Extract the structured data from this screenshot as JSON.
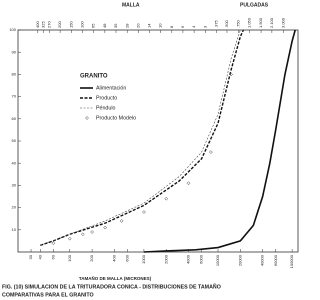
{
  "chart_data": {
    "type": "line",
    "title": "FIG. (10) SIMULACION DE LA TRITURADORA CONICA - DISTRIBUCIONES DE TAMAÑO",
    "subtitle": "COMPARATIVAS PARA EL GRANITO",
    "xlabel": "TAMAÑO DE MALLA (MICRONES)",
    "top_label": "MALLA",
    "top_label_2": "PULGADAS",
    "legend_title": "GRANITO",
    "xlog": true,
    "xlim": [
      20,
      120000
    ],
    "ylim": [
      0,
      100
    ],
    "xticks": [
      30,
      40,
      60,
      100,
      200,
      400,
      600,
      1000,
      2000,
      4000,
      6000,
      10000,
      20000,
      40000,
      60000,
      100000
    ],
    "yticks": [
      10,
      20,
      30,
      40,
      50,
      60,
      70,
      80,
      90,
      100
    ],
    "top_ticks": [
      {
        "value": 37,
        "label": "400"
      },
      {
        "value": 44,
        "label": "325"
      },
      {
        "value": 53,
        "label": "270"
      },
      {
        "value": 74,
        "label": "200"
      },
      {
        "value": 105,
        "label": "150"
      },
      {
        "value": 149,
        "label": "100"
      },
      {
        "value": 210,
        "label": "65"
      },
      {
        "value": 297,
        "label": "48"
      },
      {
        "value": 420,
        "label": "35"
      },
      {
        "value": 595,
        "label": "28"
      },
      {
        "value": 841,
        "label": "20"
      },
      {
        "value": 1190,
        "label": "14"
      },
      {
        "value": 1680,
        "label": "10"
      },
      {
        "value": 2380,
        "label": "8"
      },
      {
        "value": 3360,
        "label": "6"
      },
      {
        "value": 4760,
        "label": "4"
      },
      {
        "value": 6730,
        "label": "3"
      },
      {
        "value": 9500,
        "label": ".375"
      },
      {
        "value": 13200,
        "label": ".500"
      },
      {
        "value": 19000,
        "label": ".750"
      },
      {
        "value": 26700,
        "label": "1.050"
      },
      {
        "value": 38100,
        "label": "1.500"
      },
      {
        "value": 53300,
        "label": "2.100"
      },
      {
        "value": 76200,
        "label": "3.000"
      }
    ],
    "series": [
      {
        "name": "Alimentación",
        "color": "#111111",
        "style": "solid",
        "x": [
          1000,
          2000,
          5000,
          10000,
          20000,
          30000,
          40000,
          50000,
          60000,
          80000,
          100000,
          110000
        ],
        "values": [
          0,
          0.5,
          1,
          2,
          5,
          12,
          25,
          40,
          55,
          80,
          95,
          100
        ]
      },
      {
        "name": "Producto",
        "color": "#111111",
        "style": "dashed",
        "x": [
          40,
          60,
          100,
          300,
          1000,
          3000,
          6000,
          10000,
          15000,
          20000,
          22000
        ],
        "values": [
          3,
          5,
          8,
          13,
          21,
          32,
          42,
          58,
          82,
          97,
          100
        ]
      },
      {
        "name": "Péndulo",
        "color": "#444444",
        "style": "thin-dashed",
        "x": [
          40,
          60,
          100,
          300,
          1000,
          3000,
          6000,
          10000,
          15000,
          20000
        ],
        "values": [
          3,
          5,
          8,
          14,
          22,
          34,
          45,
          62,
          87,
          100
        ]
      },
      {
        "name": "Producto Modelo",
        "color": "#333333",
        "style": "diamond",
        "x": [
          60,
          100,
          150,
          200,
          300,
          500,
          1000,
          2000,
          4000,
          8000,
          15000
        ],
        "values": [
          4,
          6,
          8,
          9,
          11,
          14,
          18,
          24,
          31,
          45,
          80
        ]
      }
    ]
  }
}
